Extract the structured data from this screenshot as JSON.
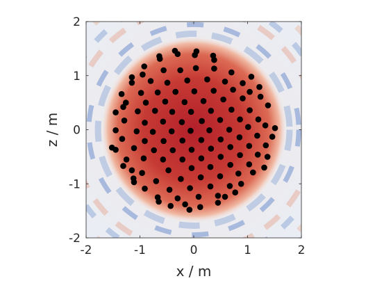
{
  "chart_data": {
    "type": "scatter",
    "title": "",
    "xlabel": "x / m",
    "ylabel": "z / m",
    "xlim": [
      -2,
      2
    ],
    "ylim": [
      -2,
      2
    ],
    "xticks": [
      "-2",
      "-1",
      "0",
      "1",
      "2"
    ],
    "yticks": [
      "-2",
      "-1",
      "0",
      "1",
      "2"
    ],
    "grid": false,
    "legend": "none",
    "background": "sound-field heatmap, diverging blue-white-red colormap; strong red disk of radius ~1.6 m centred at origin, blue/white ripple rings outside",
    "colors": {
      "points": "#000000",
      "heat_high": "#b2182b",
      "heat_mid": "#f7f7f7",
      "heat_low": "#2166ac"
    },
    "points": [
      [
        -0.64,
        1.36
      ],
      [
        -0.35,
        1.46
      ],
      [
        0.05,
        1.45
      ],
      [
        0.36,
        1.37
      ],
      [
        -0.63,
        1.31
      ],
      [
        -0.3,
        1.4
      ],
      [
        0.02,
        1.38
      ],
      [
        0.38,
        1.29
      ],
      [
        -0.92,
        1.17
      ],
      [
        -0.56,
        1.1
      ],
      [
        -0.25,
        1.1
      ],
      [
        0.04,
        1.14
      ],
      [
        0.38,
        1.13
      ],
      [
        0.7,
        1.06
      ],
      [
        -1.15,
        0.97
      ],
      [
        -0.95,
        1.02
      ],
      [
        -0.8,
        0.9
      ],
      [
        -0.49,
        0.87
      ],
      [
        -0.12,
        0.91
      ],
      [
        0.25,
        0.93
      ],
      [
        0.58,
        0.89
      ],
      [
        0.91,
        0.86
      ],
      [
        1.07,
        0.98
      ],
      [
        -1.15,
        0.87
      ],
      [
        -0.98,
        0.68
      ],
      [
        -0.67,
        0.69
      ],
      [
        -0.34,
        0.7
      ],
      [
        0.01,
        0.71
      ],
      [
        0.37,
        0.72
      ],
      [
        0.73,
        0.74
      ],
      [
        1.04,
        0.7
      ],
      [
        1.22,
        0.79
      ],
      [
        -1.34,
        0.66
      ],
      [
        -1.26,
        0.5
      ],
      [
        -0.89,
        0.5
      ],
      [
        -0.53,
        0.52
      ],
      [
        -0.17,
        0.51
      ],
      [
        0.18,
        0.53
      ],
      [
        0.55,
        0.56
      ],
      [
        0.91,
        0.58
      ],
      [
        1.24,
        0.61
      ],
      [
        -1.31,
        0.42
      ],
      [
        -1.04,
        0.34
      ],
      [
        -0.72,
        0.35
      ],
      [
        -0.4,
        0.33
      ],
      [
        -0.05,
        0.33
      ],
      [
        0.32,
        0.35
      ],
      [
        0.7,
        0.37
      ],
      [
        1.04,
        0.36
      ],
      [
        1.38,
        0.45
      ],
      [
        -1.45,
        0.32
      ],
      [
        -1.29,
        0.17
      ],
      [
        -0.91,
        0.13
      ],
      [
        -0.57,
        0.15
      ],
      [
        -0.22,
        0.14
      ],
      [
        0.15,
        0.16
      ],
      [
        0.49,
        0.18
      ],
      [
        0.86,
        0.19
      ],
      [
        1.2,
        0.19
      ],
      [
        -1.45,
        -0.01
      ],
      [
        -1.06,
        -0.03
      ],
      [
        -0.76,
        -0.04
      ],
      [
        -0.41,
        -0.03
      ],
      [
        -0.06,
        -0.02
      ],
      [
        0.29,
        -0.01
      ],
      [
        0.66,
        0.0
      ],
      [
        1.01,
        0.05
      ],
      [
        1.33,
        0.08
      ],
      [
        1.51,
        0.03
      ],
      [
        -1.33,
        -0.17
      ],
      [
        -0.91,
        -0.21
      ],
      [
        -0.56,
        -0.21
      ],
      [
        -0.21,
        -0.2
      ],
      [
        0.14,
        -0.19
      ],
      [
        0.5,
        -0.18
      ],
      [
        0.85,
        -0.14
      ],
      [
        1.18,
        -0.11
      ],
      [
        1.46,
        -0.13
      ],
      [
        -1.52,
        -0.33
      ],
      [
        -1.11,
        -0.34
      ],
      [
        -0.74,
        -0.38
      ],
      [
        -0.39,
        -0.38
      ],
      [
        -0.04,
        -0.37
      ],
      [
        0.32,
        -0.35
      ],
      [
        0.68,
        -0.32
      ],
      [
        1.03,
        -0.3
      ],
      [
        1.34,
        -0.29
      ],
      [
        -1.45,
        -0.37
      ],
      [
        -1.25,
        -0.55
      ],
      [
        -0.93,
        -0.53
      ],
      [
        -0.57,
        -0.55
      ],
      [
        -0.21,
        -0.55
      ],
      [
        0.14,
        -0.53
      ],
      [
        0.5,
        -0.5
      ],
      [
        0.86,
        -0.47
      ],
      [
        1.19,
        -0.46
      ],
      [
        1.37,
        -0.5
      ],
      [
        -1.31,
        -0.67
      ],
      [
        -1.15,
        -0.75
      ],
      [
        -0.96,
        -0.8
      ],
      [
        -0.47,
        -0.75
      ],
      [
        -0.04,
        -0.71
      ],
      [
        0.31,
        -0.69
      ],
      [
        0.68,
        -0.65
      ],
      [
        1.03,
        -0.64
      ],
      [
        1.31,
        -0.7
      ],
      [
        -1.12,
        -0.9
      ],
      [
        -1.11,
        -0.97
      ],
      [
        -0.7,
        -0.95
      ],
      [
        -0.24,
        -0.91
      ],
      [
        0.13,
        -0.88
      ],
      [
        0.49,
        -0.86
      ],
      [
        0.83,
        -0.81
      ],
      [
        1.1,
        -0.79
      ],
      [
        -0.91,
        -1.09
      ],
      [
        -0.45,
        -1.11
      ],
      [
        -0.07,
        -1.08
      ],
      [
        0.31,
        -1.05
      ],
      [
        0.67,
        -1.04
      ],
      [
        0.88,
        -1.0
      ],
      [
        -0.67,
        -1.25
      ],
      [
        -0.3,
        -1.27
      ],
      [
        0.09,
        -1.24
      ],
      [
        0.45,
        -1.22
      ],
      [
        0.77,
        -1.16
      ],
      [
        -0.65,
        -1.33
      ],
      [
        -0.43,
        -1.41
      ],
      [
        -0.16,
        -1.38
      ],
      [
        0.12,
        -1.43
      ],
      [
        0.45,
        -1.35
      ],
      [
        0.58,
        -1.24
      ],
      [
        -0.08,
        -1.48
      ]
    ]
  }
}
